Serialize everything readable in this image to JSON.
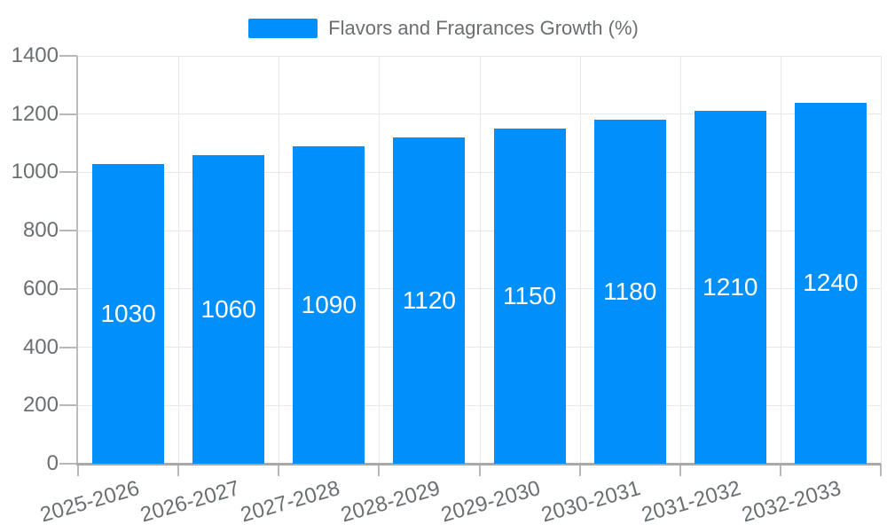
{
  "legend": {
    "label": "Flavors and Fragrances Growth (%)",
    "position": "top"
  },
  "chart_data": {
    "type": "bar",
    "title": "Flavors and Fragrances Growth (%)",
    "categories": [
      "2025-2026",
      "2026-2027",
      "2027-2028",
      "2028-2029",
      "2029-2030",
      "2030-2031",
      "2031-2032",
      "2032-2033"
    ],
    "series": [
      {
        "name": "Flavors and Fragrances Growth (%)",
        "values": [
          1030,
          1060,
          1090,
          1120,
          1150,
          1180,
          1210,
          1240
        ]
      }
    ],
    "value_labels": [
      "1030",
      "1060",
      "1090",
      "1120",
      "1150",
      "1180",
      "1210",
      "1240"
    ],
    "xlabel": "",
    "ylabel": "",
    "ylim": [
      0,
      1400
    ],
    "yticks": [
      0,
      200,
      400,
      600,
      800,
      1000,
      1200,
      1400
    ],
    "grid": "horizontal-and-vertical",
    "legend_position": "top",
    "bar_labels_inside": true,
    "colors": {
      "bar": "#008FFB",
      "value_label": "#FFFFFF",
      "axis_text": "#6B6F72",
      "legend_text": "#6B6F72",
      "grid_line": "#E8E8E8",
      "tick_line": "#B8B8B8",
      "y_axis_line": "#BCBCBC",
      "x_axis_line": "#A9A9A9",
      "background": "#FFFFFF"
    }
  }
}
